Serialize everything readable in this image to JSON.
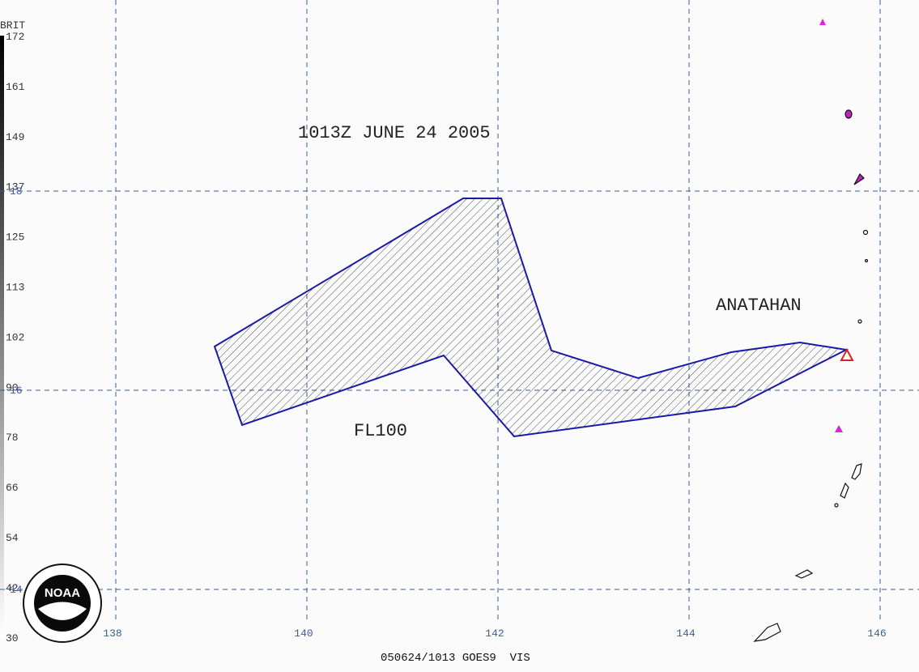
{
  "colorbar": {
    "title": "BRIT",
    "labels": [
      "172",
      "161",
      "149",
      "137",
      "125",
      "113",
      "102",
      "90",
      "78",
      "66",
      "54",
      "42",
      "30"
    ]
  },
  "map": {
    "lon_labels": [
      "138",
      "140",
      "142",
      "144",
      "146"
    ],
    "lat_labels": [
      "18",
      "16",
      "14"
    ]
  },
  "annotations": {
    "title": "1013Z JUNE 24 2005",
    "volcano": "ANATAHAN",
    "flight_level": "FL100"
  },
  "logo": "NOAA",
  "footer": "050624/1013 GOES9  VIS"
}
